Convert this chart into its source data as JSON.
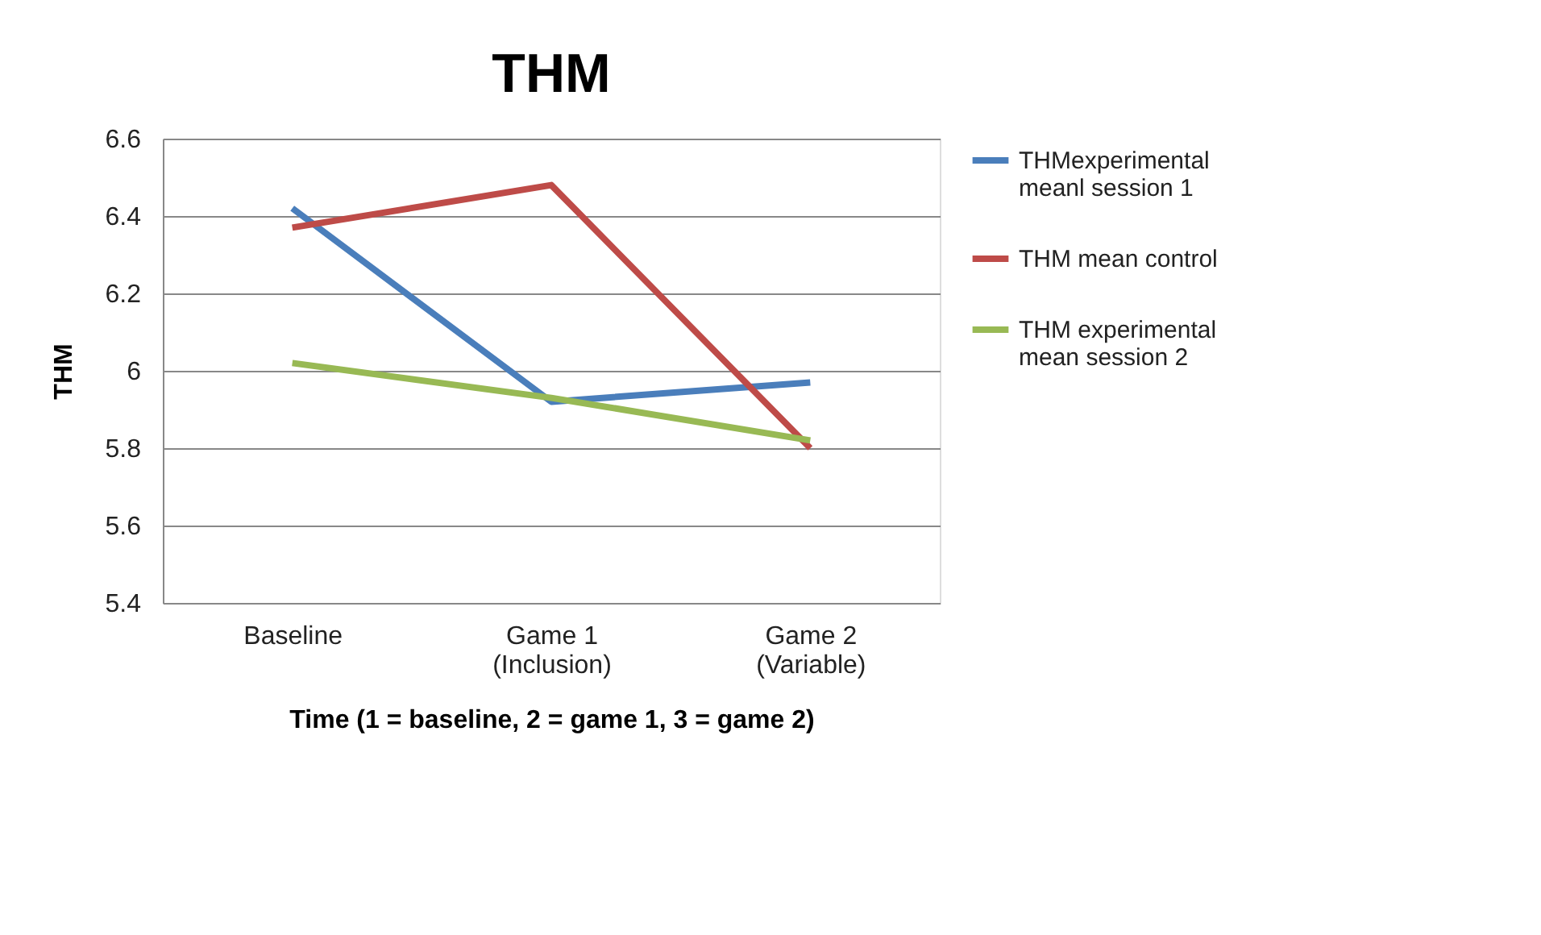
{
  "chart_data": {
    "type": "line",
    "title": "THM",
    "xlabel": "Time (1 = baseline, 2 = game 1, 3 = game 2)",
    "ylabel": "THM",
    "categories": [
      "Baseline",
      "Game 1\n(Inclusion)",
      "Game 2\n(Variable)"
    ],
    "series": [
      {
        "name": "THMexperimental\nmeanl session 1",
        "color": "#4a7ebb",
        "values": [
          6.42,
          5.92,
          5.97
        ]
      },
      {
        "name": "THM  mean control",
        "color": "#be4b48",
        "values": [
          6.37,
          6.48,
          5.8
        ]
      },
      {
        "name": "THM experimental\nmean session 2",
        "color": "#98b954",
        "values": [
          6.02,
          5.93,
          5.82
        ]
      }
    ],
    "ylim": [
      5.4,
      6.6
    ],
    "yticks": [
      5.4,
      5.6,
      5.8,
      6,
      6.2,
      6.4,
      6.6
    ],
    "grid": "y",
    "legend": "right",
    "marker": "none",
    "line_style": "solid"
  }
}
